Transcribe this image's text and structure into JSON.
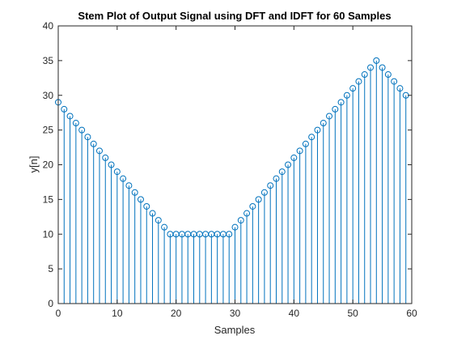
{
  "chart_data": {
    "type": "stem",
    "title": "Stem Plot of Output Signal using DFT and IDFT for 60 Samples",
    "xlabel": "Samples",
    "ylabel": "y[n]",
    "xlim": [
      0,
      60
    ],
    "ylim": [
      0,
      40
    ],
    "xticks": [
      0,
      10,
      20,
      30,
      40,
      50,
      60
    ],
    "yticks": [
      0,
      5,
      10,
      15,
      20,
      25,
      30,
      35,
      40
    ],
    "grid": false,
    "legend": "none",
    "series": [
      {
        "color": "#0072BD",
        "marker": "circle-open",
        "x": [
          0,
          1,
          2,
          3,
          4,
          5,
          6,
          7,
          8,
          9,
          10,
          11,
          12,
          13,
          14,
          15,
          16,
          17,
          18,
          19,
          20,
          21,
          22,
          23,
          24,
          25,
          26,
          27,
          28,
          29,
          30,
          31,
          32,
          33,
          34,
          35,
          36,
          37,
          38,
          39,
          40,
          41,
          42,
          43,
          44,
          45,
          46,
          47,
          48,
          49,
          50,
          51,
          52,
          53,
          54,
          55,
          56,
          57,
          58,
          59
        ],
        "values": [
          29,
          28,
          27,
          26,
          25,
          24,
          23,
          22,
          21,
          20,
          19,
          18,
          17,
          16,
          15,
          14,
          13,
          12,
          11,
          10,
          10,
          10,
          10,
          10,
          10,
          10,
          10,
          10,
          10,
          10,
          11,
          12,
          13,
          14,
          15,
          16,
          17,
          18,
          19,
          20,
          21,
          22,
          23,
          24,
          25,
          26,
          27,
          28,
          29,
          30,
          31,
          32,
          33,
          34,
          35,
          34,
          33,
          32,
          31,
          30
        ]
      }
    ]
  }
}
